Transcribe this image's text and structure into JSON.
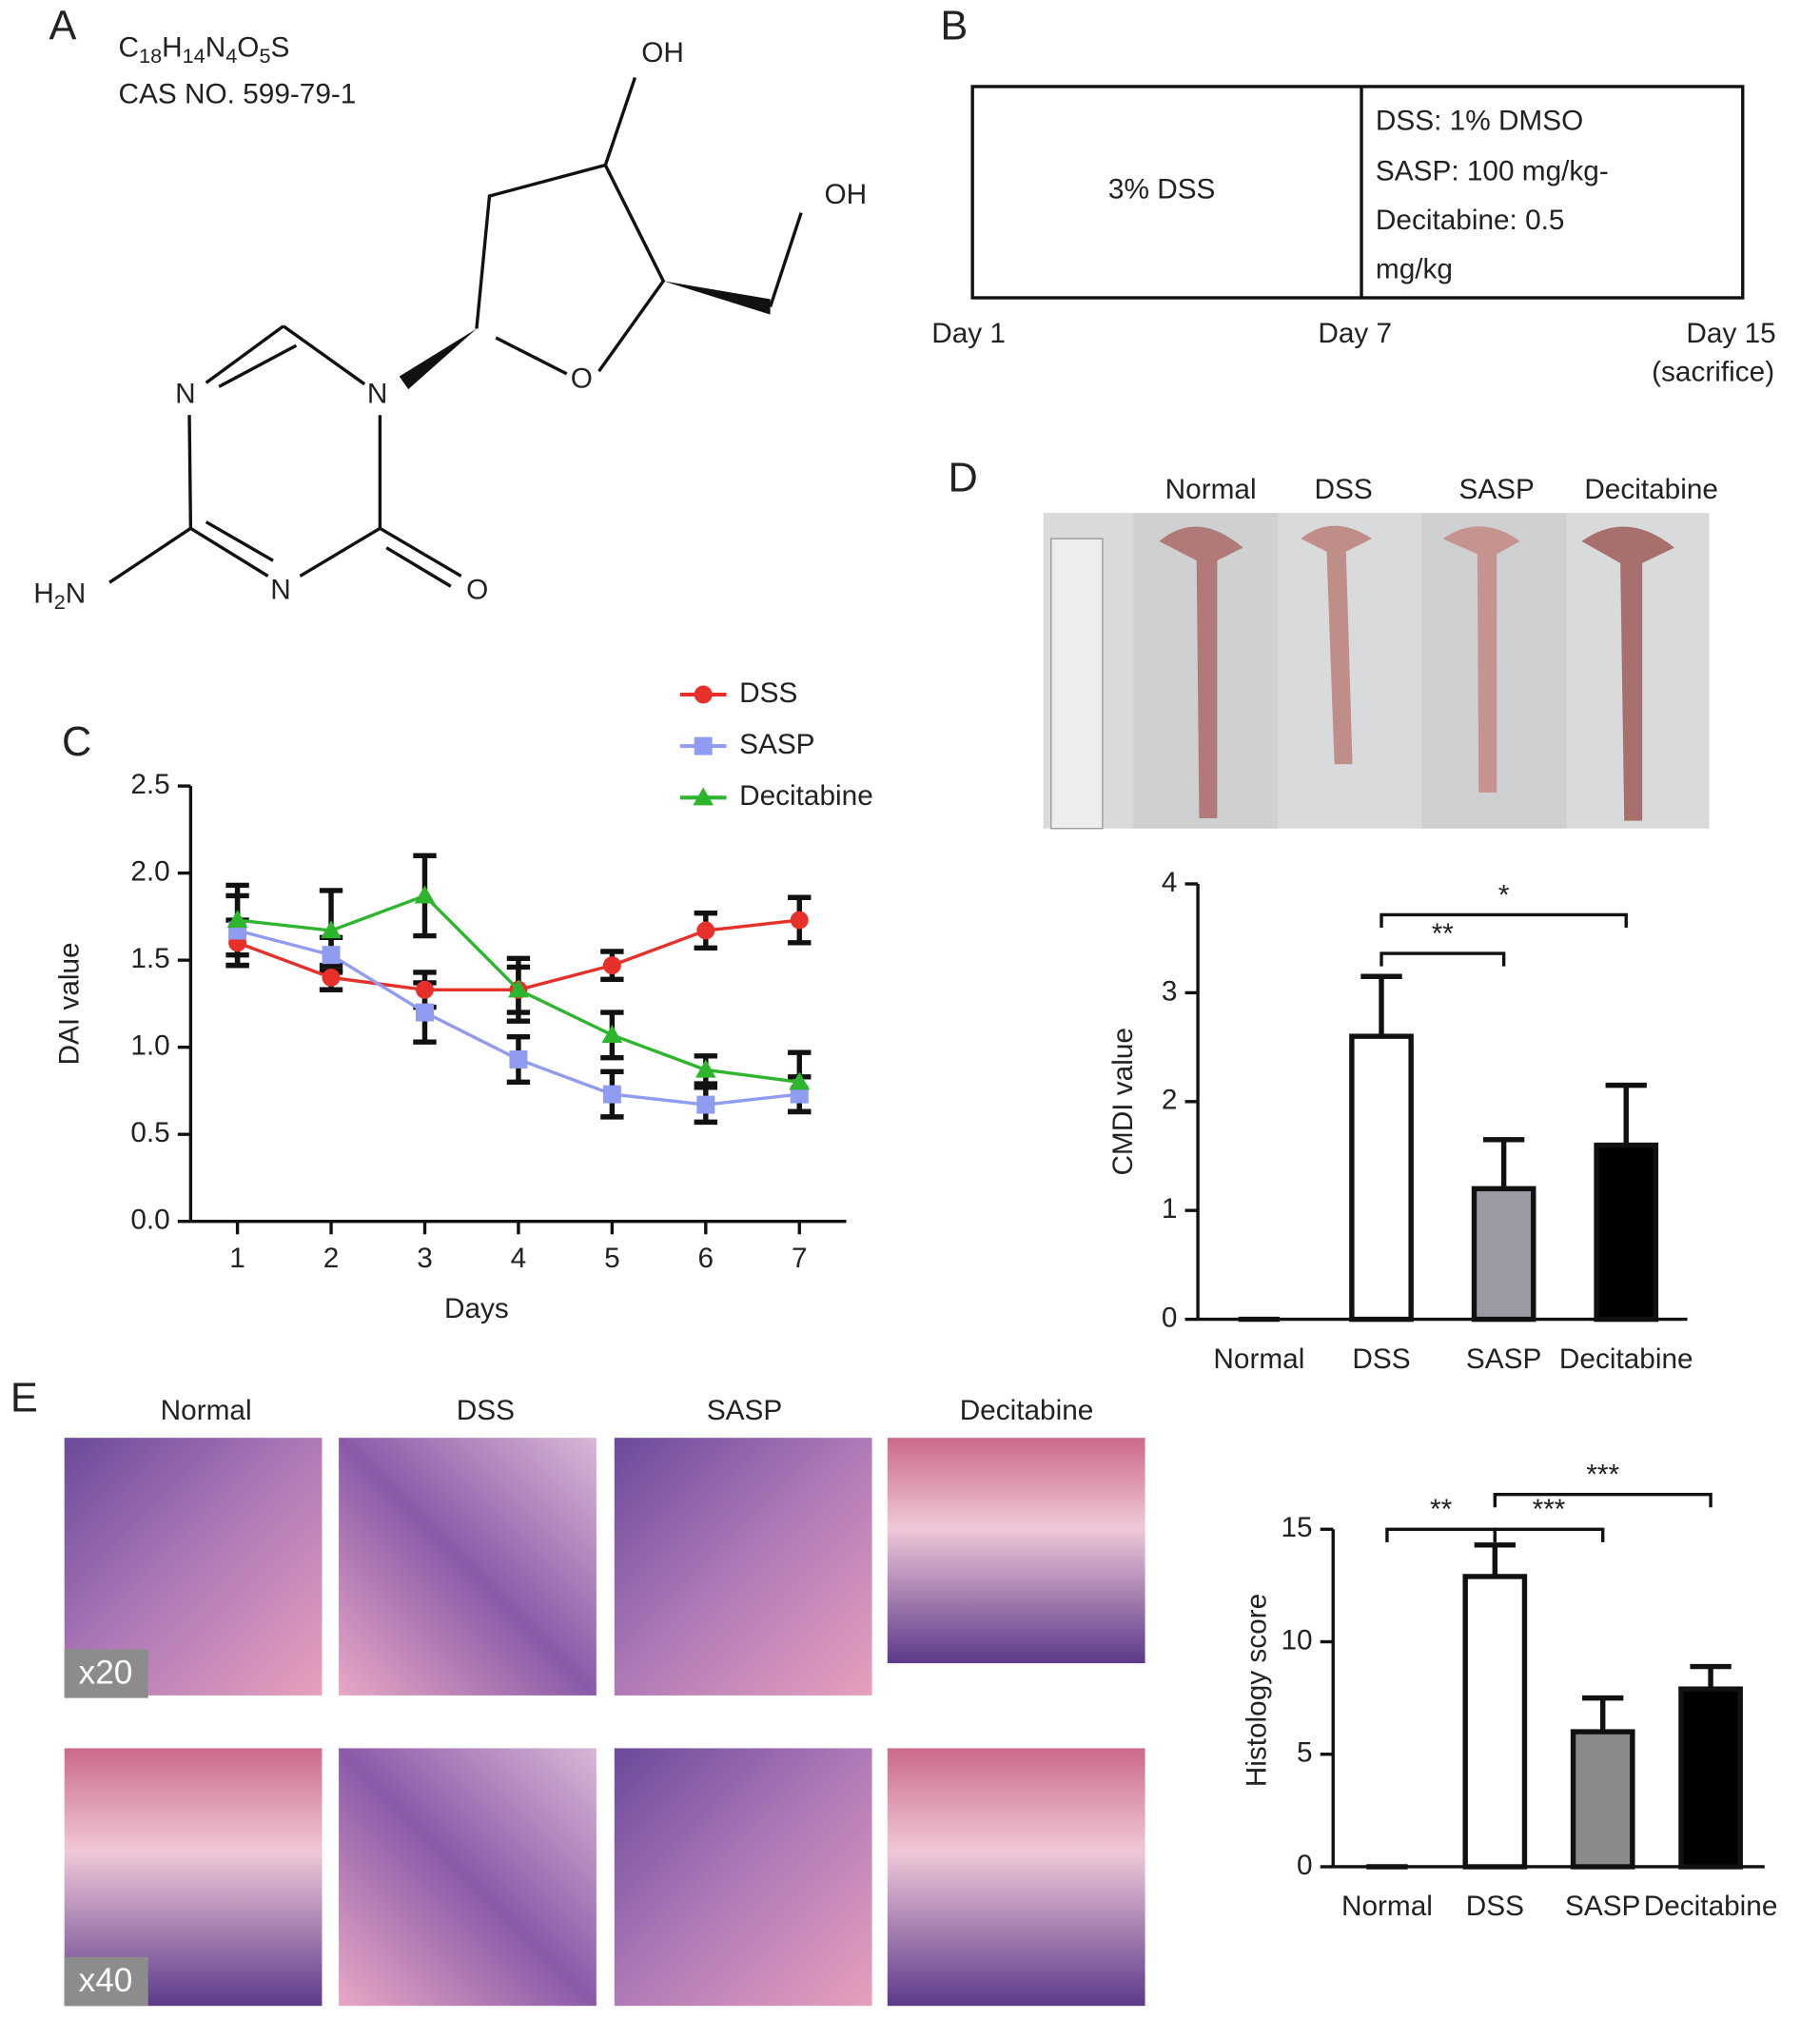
{
  "panel_labels": [
    "A",
    "B",
    "C",
    "D",
    "E"
  ],
  "structure": {
    "formula": [
      "C",
      "18",
      "H",
      "14",
      "N",
      "4",
      "O",
      "5",
      "S"
    ],
    "cas": "CAS NO. 599-79-1",
    "atoms": [
      "OH",
      "OH",
      "N",
      "N",
      "O",
      "N",
      "O"
    ],
    "amine": [
      "H",
      "2",
      "N"
    ]
  },
  "timeline": {
    "phase1": "3% DSS",
    "phase2": [
      "DSS: 1% DMSO",
      "SASP: 100 mg/kg-",
      "Decitabine: 0.5",
      "mg/kg"
    ],
    "days": [
      "Day 1",
      "Day 7",
      "Day 15",
      "(sacrifice)"
    ]
  },
  "photo_labels": [
    "Normal",
    "DSS",
    "SASP",
    "Decitabine"
  ],
  "histology": {
    "columns": [
      "Normal",
      "DSS",
      "SASP",
      "Decitabine"
    ],
    "rows": [
      "x20",
      "x40"
    ]
  },
  "chart_data": [
    {
      "type": "line",
      "xlabel": "Days",
      "ylabel": "DAI value",
      "x": [
        1,
        2,
        3,
        4,
        5,
        6,
        7
      ],
      "xlim": [
        0.5,
        7.5
      ],
      "xticks": [
        1,
        2,
        3,
        4,
        5,
        6,
        7
      ],
      "ylim": [
        0,
        2.5
      ],
      "yticks": [
        {
          "value": 0,
          "label": "0.0"
        },
        0.5,
        {
          "value": 1,
          "label": "1.0"
        },
        1.5,
        {
          "value": 2,
          "label": "2.0"
        },
        2.5
      ],
      "series": [
        {
          "name": "DSS",
          "color": "#e8302a",
          "marker": "circle",
          "values": [
            1.6,
            1.4,
            1.33,
            1.33,
            1.47,
            1.67,
            1.73
          ],
          "errors": [
            0.13,
            0.07,
            0.1,
            0.13,
            0.08,
            0.1,
            0.13
          ]
        },
        {
          "name": "SASP",
          "color": "#8f9cf0",
          "marker": "square",
          "values": [
            1.67,
            1.53,
            1.2,
            0.93,
            0.73,
            0.67,
            0.73
          ],
          "errors": [
            0.2,
            0.1,
            0.17,
            0.13,
            0.13,
            0.1,
            0.1
          ]
        },
        {
          "name": "Decitabine",
          "color": "#2db52d",
          "marker": "triangle",
          "values": [
            1.73,
            1.67,
            1.87,
            1.33,
            1.07,
            0.87,
            0.8
          ],
          "errors": [
            0.2,
            0.23,
            0.23,
            0.18,
            0.13,
            0.08,
            0.17
          ]
        }
      ]
    },
    {
      "type": "bar",
      "ylabel": "CMDI value",
      "categories": [
        "Normal",
        "DSS",
        "SASP",
        "Decitabine"
      ],
      "values": [
        0,
        2.6,
        1.2,
        1.6
      ],
      "errors": [
        0,
        0.55,
        0.45,
        0.55
      ],
      "colors": [
        "#ffffff",
        "#ffffff",
        "#9b9ba3",
        "#000000"
      ],
      "ylim": [
        0,
        4
      ],
      "yticks": [
        0,
        1,
        2,
        3,
        4
      ],
      "annotations": [
        {
          "from": "DSS",
          "to": "SASP",
          "label": "**"
        },
        {
          "from": "DSS",
          "to": "Decitabine",
          "label": "*"
        }
      ]
    },
    {
      "type": "bar",
      "ylabel": "Histology score",
      "categories": [
        "Normal",
        "DSS",
        "SASP",
        "Decitabine"
      ],
      "values": [
        0,
        12.9,
        6,
        7.9
      ],
      "errors": [
        0,
        1.4,
        1.5,
        1
      ],
      "colors": [
        "#ffffff",
        "#ffffff",
        "#8a8a8a",
        "#000000"
      ],
      "ylim": [
        0,
        15
      ],
      "yticks": [
        0,
        5,
        10,
        15
      ],
      "annotations": [
        {
          "from": "Normal",
          "to": "DSS",
          "label": "**"
        },
        {
          "from": "DSS",
          "to": "SASP",
          "label": "***"
        },
        {
          "from": "DSS",
          "to": "Decitabine",
          "label": "***"
        }
      ]
    }
  ]
}
